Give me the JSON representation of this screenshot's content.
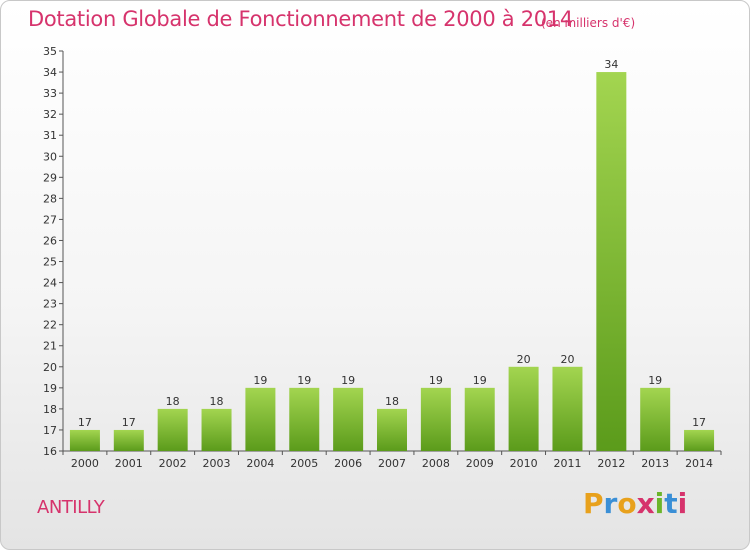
{
  "header": {
    "title": "Dotation Globale de Fonctionnement de 2000 à 2014",
    "subtitle": "(en milliers d'€)"
  },
  "footer": {
    "city": "ANTILLY",
    "logo": "Proxiti"
  },
  "colors": {
    "title": "#d6336c",
    "bar_top": "#9fd24c",
    "bar_bottom": "#5a9a1a",
    "axis": "#555555"
  },
  "chart_data": {
    "type": "bar",
    "title": "Dotation Globale de Fonctionnement de 2000 à 2014",
    "subtitle": "(en milliers d'€)",
    "xlabel": "",
    "ylabel": "",
    "categories": [
      "2000",
      "2001",
      "2002",
      "2003",
      "2004",
      "2005",
      "2006",
      "2007",
      "2008",
      "2009",
      "2010",
      "2011",
      "2012",
      "2013",
      "2014"
    ],
    "values": [
      17,
      17,
      18,
      18,
      19,
      19,
      19,
      18,
      19,
      19,
      20,
      20,
      34,
      19,
      17
    ],
    "ylim": [
      16,
      35
    ],
    "yticks": [
      16,
      17,
      18,
      19,
      20,
      21,
      22,
      23,
      24,
      25,
      26,
      27,
      28,
      29,
      30,
      31,
      32,
      33,
      34,
      35
    ],
    "grid": false,
    "data_labels": true
  }
}
